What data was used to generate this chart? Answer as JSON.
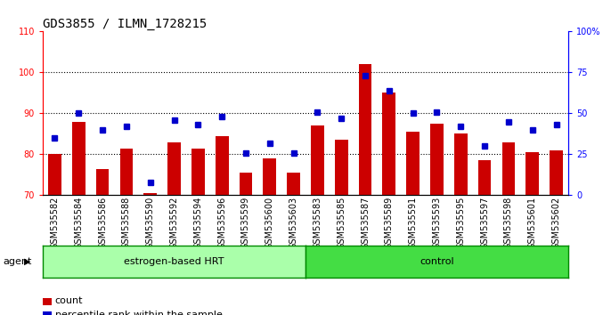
{
  "title": "GDS3855 / ILMN_1728215",
  "samples": [
    "GSM535582",
    "GSM535584",
    "GSM535586",
    "GSM535588",
    "GSM535590",
    "GSM535592",
    "GSM535594",
    "GSM535596",
    "GSM535599",
    "GSM535600",
    "GSM535603",
    "GSM535583",
    "GSM535585",
    "GSM535587",
    "GSM535589",
    "GSM535591",
    "GSM535593",
    "GSM535595",
    "GSM535597",
    "GSM535598",
    "GSM535601",
    "GSM535602"
  ],
  "counts": [
    80,
    88,
    76.5,
    81.5,
    70.5,
    83,
    81.5,
    84.5,
    75.5,
    79,
    75.5,
    87,
    83.5,
    102,
    95,
    85.5,
    87.5,
    85,
    78.5,
    83,
    80.5,
    81
  ],
  "percentiles": [
    35,
    50,
    40,
    42,
    8,
    46,
    43,
    48,
    26,
    32,
    26,
    51,
    47,
    73,
    64,
    50,
    51,
    42,
    30,
    45,
    40,
    43
  ],
  "group_labels": [
    "estrogen-based HRT",
    "control"
  ],
  "n_hrt": 11,
  "n_ctrl": 11,
  "ylim_left": [
    70,
    110
  ],
  "ylim_right": [
    0,
    100
  ],
  "yticks_left": [
    70,
    80,
    90,
    100,
    110
  ],
  "yticks_right": [
    0,
    25,
    50,
    75,
    100
  ],
  "yticklabels_right": [
    "0",
    "25",
    "50",
    "75",
    "100%"
  ],
  "bar_color": "#cc0000",
  "marker_color": "#0000cc",
  "group_color_hrt": "#aaffaa",
  "group_color_ctrl": "#44dd44",
  "group_border_color": "#008800",
  "bg_color": "#ffffff",
  "title_fontsize": 10,
  "tick_fontsize": 7,
  "bar_width": 0.55
}
